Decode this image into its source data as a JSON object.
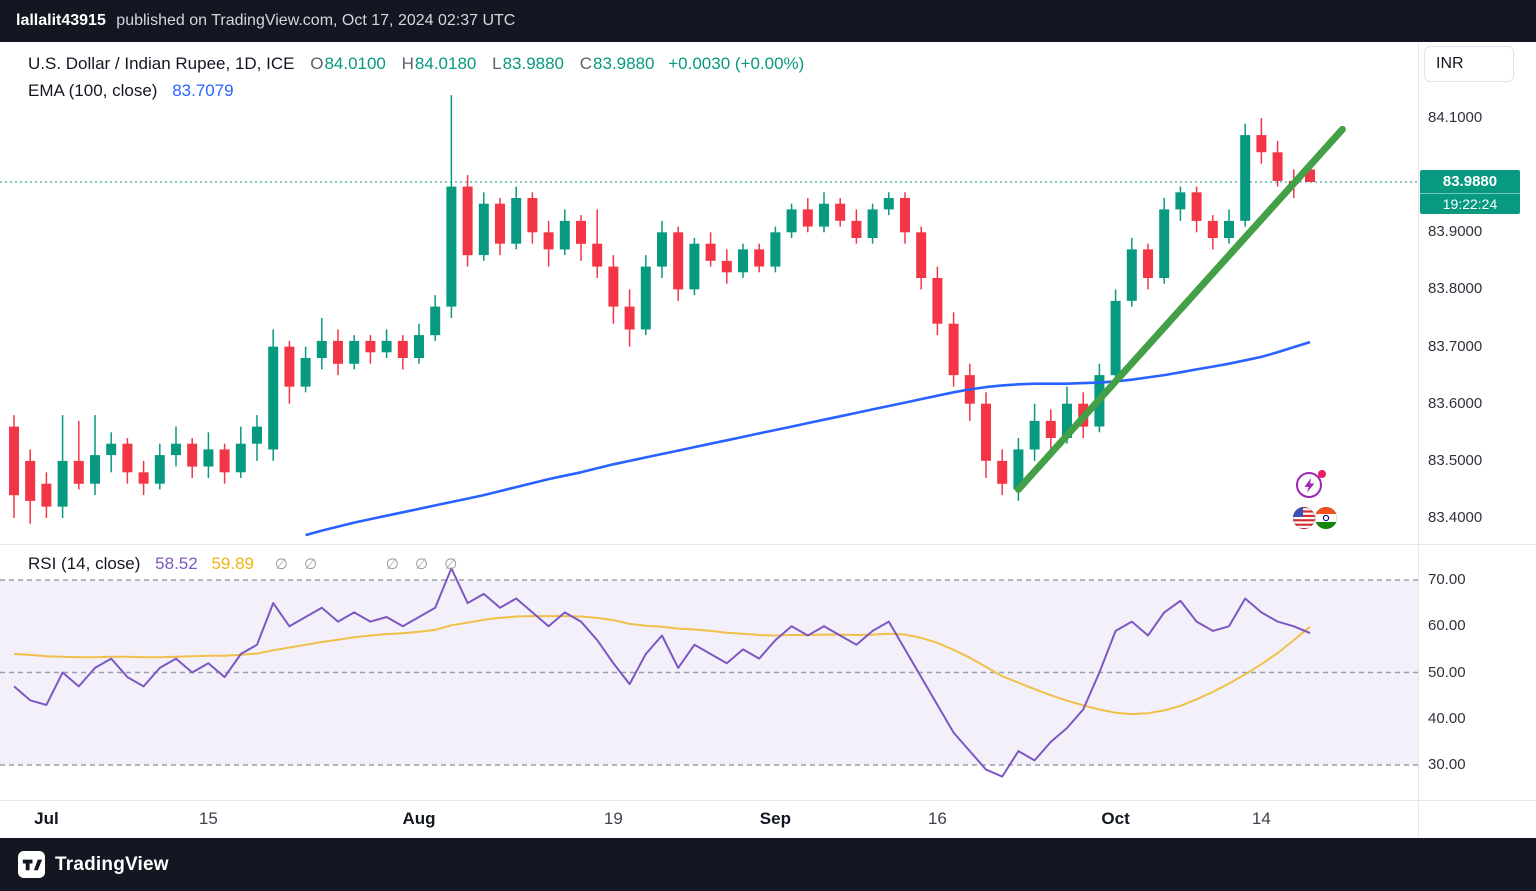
{
  "topbar": {
    "username": "lallalit43915",
    "publish_text": "published on TradingView.com, Oct 17, 2024 02:37 UTC"
  },
  "legend": {
    "symbol_title": "U.S. Dollar / Indian Rupee, 1D, ICE",
    "ohlc": {
      "o_label": "O",
      "o": "84.0100",
      "h_label": "H",
      "h": "84.0180",
      "l_label": "L",
      "l": "83.9880",
      "c_label": "C",
      "c": "83.9880",
      "change": "+0.0030 (+0.00%)"
    },
    "ema": {
      "label": "EMA (100, close)",
      "value": "83.7079"
    },
    "rsi": {
      "label": "RSI (14, close)",
      "value": "58.52",
      "ma_value": "59.89",
      "hidden_1": "∅ ∅",
      "hidden_2": "∅ ∅ ∅"
    }
  },
  "currency_button": {
    "label": "INR"
  },
  "price_scale": {
    "labels": [
      {
        "text": "84.1000",
        "value": 84.1
      },
      {
        "text": "83.9000",
        "value": 83.9
      },
      {
        "text": "83.8000",
        "value": 83.8
      },
      {
        "text": "83.7000",
        "value": 83.7
      },
      {
        "text": "83.6000",
        "value": 83.6
      },
      {
        "text": "83.5000",
        "value": 83.5
      },
      {
        "text": "83.4000",
        "value": 83.4
      }
    ],
    "current": {
      "price": "83.9880",
      "value": 83.988,
      "countdown": "19:22:24"
    }
  },
  "rsi_scale": {
    "labels": [
      {
        "text": "70.00",
        "value": 70
      },
      {
        "text": "60.00",
        "value": 60
      },
      {
        "text": "50.00",
        "value": 50
      },
      {
        "text": "40.00",
        "value": 40
      },
      {
        "text": "30.00",
        "value": 30
      }
    ]
  },
  "time_axis": [
    {
      "label": "Jul",
      "index": 2,
      "major": true
    },
    {
      "label": "15",
      "index": 12,
      "major": false
    },
    {
      "label": "Aug",
      "index": 25,
      "major": true
    },
    {
      "label": "19",
      "index": 37,
      "major": false
    },
    {
      "label": "Sep",
      "index": 47,
      "major": true
    },
    {
      "label": "16",
      "index": 57,
      "major": false
    },
    {
      "label": "Oct",
      "index": 68,
      "major": true
    },
    {
      "label": "14",
      "index": 77,
      "major": false
    }
  ],
  "footer": {
    "brand": "TradingView"
  },
  "colors": {
    "up": "#089981",
    "down": "#f23645",
    "ema": "#2962ff",
    "trend": "#43a047",
    "rsi": "#7e57c2",
    "rsi_ma": "#f0c04a",
    "rsi_band": "rgba(126,87,194,0.09)",
    "rsi_dash": "#9aa0ac"
  },
  "chart_data": {
    "type": "candlestick",
    "title": "U.S. Dollar / Indian Rupee, 1D, ICE",
    "interval": "1D",
    "grid": false,
    "legend_position": "top-left",
    "price_range": [
      83.35,
      84.23
    ],
    "rsi_range": [
      22,
      78
    ],
    "rsi_levels": [
      70,
      50,
      30
    ],
    "current_price": 83.988,
    "candles": [
      [
        83.56,
        83.58,
        83.4,
        83.44
      ],
      [
        83.5,
        83.52,
        83.39,
        83.43
      ],
      [
        83.46,
        83.48,
        83.4,
        83.42
      ],
      [
        83.42,
        83.58,
        83.4,
        83.5
      ],
      [
        83.5,
        83.57,
        83.45,
        83.46
      ],
      [
        83.46,
        83.58,
        83.44,
        83.51
      ],
      [
        83.51,
        83.55,
        83.48,
        83.53
      ],
      [
        83.53,
        83.54,
        83.46,
        83.48
      ],
      [
        83.48,
        83.5,
        83.44,
        83.46
      ],
      [
        83.46,
        83.53,
        83.45,
        83.51
      ],
      [
        83.51,
        83.56,
        83.49,
        83.53
      ],
      [
        83.53,
        83.54,
        83.47,
        83.49
      ],
      [
        83.49,
        83.55,
        83.47,
        83.52
      ],
      [
        83.52,
        83.53,
        83.46,
        83.48
      ],
      [
        83.48,
        83.56,
        83.47,
        83.53
      ],
      [
        83.53,
        83.58,
        83.5,
        83.56
      ],
      [
        83.52,
        83.73,
        83.5,
        83.7
      ],
      [
        83.7,
        83.71,
        83.6,
        83.63
      ],
      [
        83.63,
        83.7,
        83.62,
        83.68
      ],
      [
        83.68,
        83.75,
        83.66,
        83.71
      ],
      [
        83.71,
        83.73,
        83.65,
        83.67
      ],
      [
        83.67,
        83.72,
        83.66,
        83.71
      ],
      [
        83.71,
        83.72,
        83.67,
        83.69
      ],
      [
        83.69,
        83.73,
        83.68,
        83.71
      ],
      [
        83.71,
        83.72,
        83.66,
        83.68
      ],
      [
        83.68,
        83.74,
        83.67,
        83.72
      ],
      [
        83.72,
        83.79,
        83.71,
        83.77
      ],
      [
        83.77,
        84.14,
        83.75,
        83.98
      ],
      [
        83.98,
        84.0,
        83.84,
        83.86
      ],
      [
        83.86,
        83.97,
        83.85,
        83.95
      ],
      [
        83.95,
        83.96,
        83.86,
        83.88
      ],
      [
        83.88,
        83.98,
        83.87,
        83.96
      ],
      [
        83.96,
        83.97,
        83.88,
        83.9
      ],
      [
        83.9,
        83.92,
        83.84,
        83.87
      ],
      [
        83.87,
        83.94,
        83.86,
        83.92
      ],
      [
        83.92,
        83.93,
        83.85,
        83.88
      ],
      [
        83.88,
        83.94,
        83.82,
        83.84
      ],
      [
        83.84,
        83.86,
        83.74,
        83.77
      ],
      [
        83.77,
        83.8,
        83.7,
        83.73
      ],
      [
        83.73,
        83.86,
        83.72,
        83.84
      ],
      [
        83.84,
        83.92,
        83.82,
        83.9
      ],
      [
        83.9,
        83.91,
        83.78,
        83.8
      ],
      [
        83.8,
        83.89,
        83.79,
        83.88
      ],
      [
        83.88,
        83.9,
        83.84,
        83.85
      ],
      [
        83.85,
        83.87,
        83.81,
        83.83
      ],
      [
        83.83,
        83.88,
        83.82,
        83.87
      ],
      [
        83.87,
        83.88,
        83.83,
        83.84
      ],
      [
        83.84,
        83.91,
        83.83,
        83.9
      ],
      [
        83.9,
        83.95,
        83.89,
        83.94
      ],
      [
        83.94,
        83.96,
        83.9,
        83.91
      ],
      [
        83.91,
        83.97,
        83.9,
        83.95
      ],
      [
        83.95,
        83.96,
        83.91,
        83.92
      ],
      [
        83.92,
        83.94,
        83.88,
        83.89
      ],
      [
        83.89,
        83.95,
        83.88,
        83.94
      ],
      [
        83.94,
        83.97,
        83.93,
        83.96
      ],
      [
        83.96,
        83.97,
        83.88,
        83.9
      ],
      [
        83.9,
        83.91,
        83.8,
        83.82
      ],
      [
        83.82,
        83.84,
        83.72,
        83.74
      ],
      [
        83.74,
        83.76,
        83.63,
        83.65
      ],
      [
        83.65,
        83.67,
        83.57,
        83.6
      ],
      [
        83.6,
        83.62,
        83.47,
        83.5
      ],
      [
        83.5,
        83.52,
        83.44,
        83.46
      ],
      [
        83.45,
        83.54,
        83.43,
        83.52
      ],
      [
        83.52,
        83.6,
        83.5,
        83.57
      ],
      [
        83.57,
        83.59,
        83.52,
        83.54
      ],
      [
        83.54,
        83.63,
        83.53,
        83.6
      ],
      [
        83.6,
        83.62,
        83.54,
        83.56
      ],
      [
        83.56,
        83.67,
        83.55,
        83.65
      ],
      [
        83.65,
        83.8,
        83.64,
        83.78
      ],
      [
        83.78,
        83.89,
        83.77,
        83.87
      ],
      [
        83.87,
        83.88,
        83.8,
        83.82
      ],
      [
        83.82,
        83.96,
        83.81,
        83.94
      ],
      [
        83.94,
        83.98,
        83.92,
        83.97
      ],
      [
        83.97,
        83.98,
        83.9,
        83.92
      ],
      [
        83.92,
        83.93,
        83.87,
        83.89
      ],
      [
        83.89,
        83.94,
        83.88,
        83.92
      ],
      [
        83.92,
        84.09,
        83.91,
        84.07
      ],
      [
        84.07,
        84.1,
        84.02,
        84.04
      ],
      [
        84.04,
        84.06,
        83.98,
        83.99
      ],
      [
        83.99,
        84.01,
        83.96,
        83.985
      ],
      [
        84.01,
        84.018,
        83.988,
        83.988
      ]
    ],
    "ema_100": [
      null,
      null,
      null,
      null,
      null,
      null,
      null,
      null,
      null,
      null,
      null,
      null,
      null,
      null,
      null,
      null,
      null,
      null,
      83.37,
      83.378,
      83.385,
      83.392,
      83.398,
      83.404,
      83.41,
      83.416,
      83.422,
      83.428,
      83.434,
      83.44,
      83.447,
      83.454,
      83.461,
      83.468,
      83.474,
      83.48,
      83.487,
      83.494,
      83.5,
      83.506,
      83.512,
      83.518,
      83.524,
      83.53,
      83.536,
      83.542,
      83.548,
      83.554,
      83.56,
      83.566,
      83.572,
      83.578,
      83.584,
      83.59,
      83.596,
      83.602,
      83.608,
      83.614,
      83.62,
      83.625,
      83.629,
      83.632,
      83.634,
      83.635,
      83.635,
      83.635,
      83.636,
      83.637,
      83.639,
      83.642,
      83.646,
      83.65,
      83.655,
      83.66,
      83.665,
      83.67,
      83.676,
      83.682,
      83.69,
      83.699,
      83.7079
    ],
    "rsi_14": [
      47,
      44,
      43,
      50,
      47,
      51,
      53,
      49,
      47,
      51,
      53,
      50,
      52,
      49,
      54,
      56,
      65,
      60,
      62,
      64,
      61,
      63,
      61,
      62,
      60,
      62,
      64,
      72.5,
      65,
      67,
      64,
      66,
      63,
      60,
      63,
      61,
      57,
      52,
      47.5,
      54,
      58,
      51,
      56,
      54,
      52,
      55,
      53,
      57,
      60,
      58,
      60,
      58,
      56,
      59,
      61,
      55,
      49,
      43,
      37,
      33,
      29,
      27.5,
      33,
      31,
      35,
      38,
      42,
      50,
      59,
      61,
      58,
      63,
      65.5,
      61,
      59,
      60,
      66,
      63,
      61,
      60,
      58.52
    ],
    "rsi_ma": [
      54.0,
      53.8,
      53.5,
      53.4,
      53.3,
      53.3,
      53.4,
      53.4,
      53.3,
      53.3,
      53.4,
      53.5,
      53.6,
      53.6,
      53.8,
      54.1,
      54.8,
      55.4,
      56.0,
      56.6,
      57.1,
      57.6,
      58.0,
      58.3,
      58.5,
      58.8,
      59.2,
      60.2,
      60.8,
      61.4,
      61.8,
      62.1,
      62.2,
      62.2,
      62.2,
      62.1,
      61.8,
      61.3,
      60.5,
      60.1,
      59.9,
      59.5,
      59.3,
      59.0,
      58.6,
      58.4,
      58.1,
      58.0,
      58.1,
      58.1,
      58.2,
      58.2,
      58.1,
      58.2,
      58.4,
      58.2,
      57.5,
      56.4,
      54.9,
      53.2,
      51.2,
      49.2,
      47.8,
      46.4,
      45.1,
      43.9,
      42.9,
      42.0,
      41.3,
      41.0,
      41.2,
      41.8,
      42.8,
      44.2,
      45.8,
      47.6,
      49.6,
      51.8,
      54.2,
      57.0,
      59.89
    ],
    "trend_line": {
      "from_index": 62,
      "from_value": 83.45,
      "to_index": 82,
      "to_value": 84.08
    }
  }
}
